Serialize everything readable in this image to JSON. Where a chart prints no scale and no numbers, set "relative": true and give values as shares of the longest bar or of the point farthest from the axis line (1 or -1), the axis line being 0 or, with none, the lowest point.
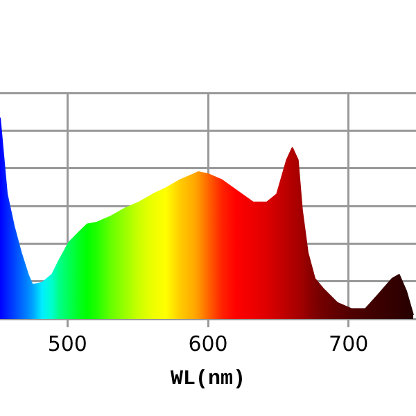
{
  "chart_data": {
    "type": "area",
    "xlabel": "WL(nm)",
    "relative": true,
    "x": [
      452,
      457,
      462,
      467,
      472,
      475,
      482,
      489,
      494,
      501,
      508,
      514,
      521,
      531,
      541,
      551,
      561,
      570,
      580,
      590,
      593,
      600,
      610,
      620,
      632,
      642,
      649,
      656,
      660,
      664,
      667,
      671,
      676,
      682,
      692,
      702,
      712,
      721,
      731,
      736,
      741,
      746
    ],
    "values": [
      1.0,
      0.62,
      0.46,
      0.33,
      0.22,
      0.17,
      0.18,
      0.22,
      0.29,
      0.38,
      0.43,
      0.47,
      0.48,
      0.51,
      0.55,
      0.58,
      0.62,
      0.65,
      0.69,
      0.72,
      0.73,
      0.72,
      0.69,
      0.64,
      0.58,
      0.58,
      0.62,
      0.79,
      0.85,
      0.79,
      0.54,
      0.33,
      0.2,
      0.15,
      0.08,
      0.05,
      0.05,
      0.12,
      0.2,
      0.22,
      0.14,
      0.02
    ],
    "colors": [
      "#0000ff",
      "#0022ff",
      "#0044ff",
      "#0066ff",
      "#0088ff",
      "#00a0ff",
      "#00eeff",
      "#00ffcc",
      "#00ff88",
      "#00ff55",
      "#00ff22",
      "#00ff00",
      "#22ff00",
      "#66ff00",
      "#99ff00",
      "#ccff00",
      "#eeff00",
      "#ffff00",
      "#ffcc00",
      "#ffaa00",
      "#ff9900",
      "#ff6600",
      "#ff2200",
      "#ff0000",
      "#ee0000",
      "#dd0000",
      "#cc0000",
      "#bb0000",
      "#b00000",
      "#a80000",
      "#a00000",
      "#900000",
      "#800000",
      "#700000",
      "#600000",
      "#500000",
      "#450000",
      "#3c0000",
      "#340000",
      "#300000",
      "#2a0000",
      "#250000"
    ],
    "xlim": [
      452,
      748
    ],
    "xticks": [
      500,
      600,
      700
    ],
    "grid": true
  }
}
